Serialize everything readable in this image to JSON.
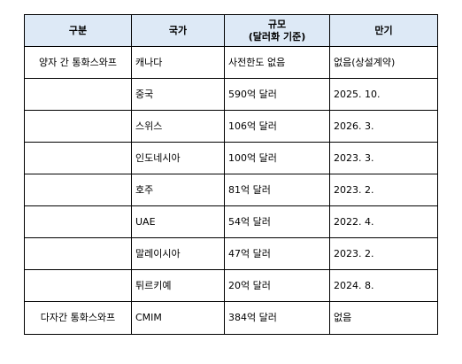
{
  "table": {
    "headers": {
      "category": "구분",
      "country": "국가",
      "scale_line1": "규모",
      "scale_line2": "(달러화 기준)",
      "maturity": "만기"
    },
    "rows": [
      {
        "category": "양자 간 통화스와프",
        "country": "캐나다",
        "scale": "사전한도 없음",
        "maturity": "없음(상설계약)"
      },
      {
        "category": "",
        "country": "중국",
        "scale": "590억 달러",
        "maturity": "2025. 10."
      },
      {
        "category": "",
        "country": "스위스",
        "scale": "106억 달러",
        "maturity": "2026. 3."
      },
      {
        "category": "",
        "country": "인도네시아",
        "scale": "100억 달러",
        "maturity": "2023. 3."
      },
      {
        "category": "",
        "country": "호주",
        "scale": "81억 달러",
        "maturity": "2023. 2."
      },
      {
        "category": "",
        "country": "UAE",
        "scale": "54억 달러",
        "maturity": "2022. 4."
      },
      {
        "category": "",
        "country": "말레이시아",
        "scale": "47억 달러",
        "maturity": "2023. 2."
      },
      {
        "category": "",
        "country": "튀르키예",
        "scale": "20억 달러",
        "maturity": "2024. 8."
      },
      {
        "category": "다자간 통화스와프",
        "country": "CMIM",
        "scale": "384억 달러",
        "maturity": "없음"
      }
    ]
  }
}
